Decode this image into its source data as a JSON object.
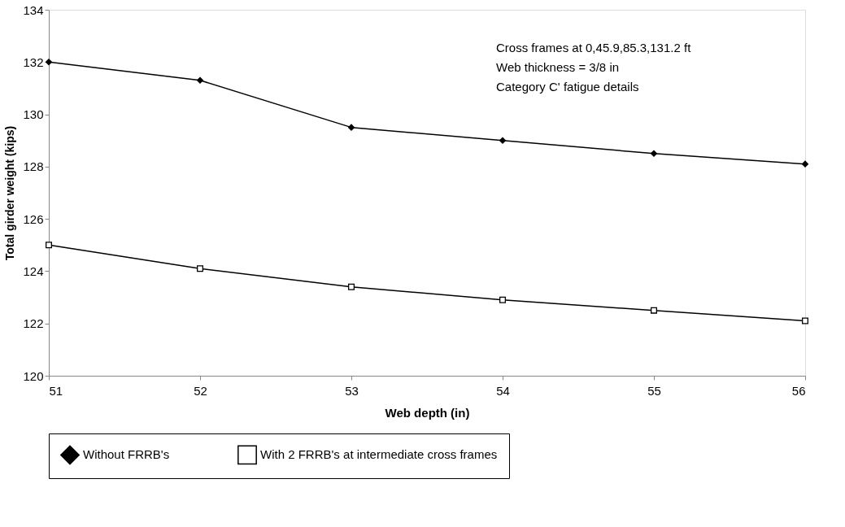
{
  "chart_data": {
    "type": "line",
    "xlabel": "Web depth (in)",
    "ylabel": "Total girder weight (kips)",
    "x": [
      51,
      52,
      53,
      54,
      55,
      56
    ],
    "series": [
      {
        "name": "Without FRRB's",
        "color": "#000000",
        "marker": "diamond",
        "values": [
          132.0,
          131.3,
          129.5,
          129.0,
          128.5,
          128.1
        ]
      },
      {
        "name": "With 2 FRRB's at intermediate cross frames",
        "color": "#000000",
        "marker": "square",
        "values": [
          125.0,
          124.1,
          123.4,
          122.9,
          122.5,
          122.1
        ]
      }
    ],
    "xlim": [
      51,
      56
    ],
    "xticks": [
      51,
      52,
      53,
      54,
      55,
      56
    ],
    "ylim": [
      120,
      134
    ],
    "yticks": [
      120,
      122,
      124,
      126,
      128,
      130,
      132,
      134
    ],
    "grid": false,
    "legend": "bottom",
    "line_style": "solid",
    "annotations": [
      "Cross frames at 0,45.9,85.3,131.2 ft",
      "Web thickness = 3/8 in",
      "Category C'  fatigue details"
    ]
  }
}
